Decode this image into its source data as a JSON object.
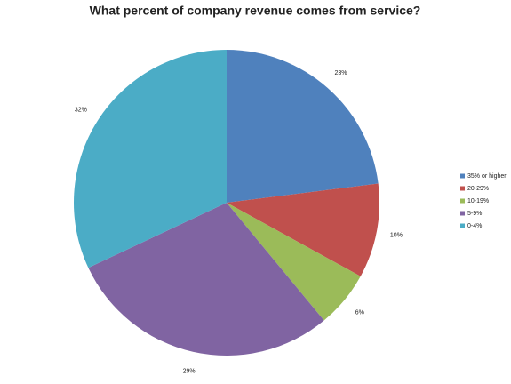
{
  "chart_data": {
    "type": "pie",
    "title": "What percent of company revenue comes from service?",
    "categories": [
      "35% or higher",
      "20-29%",
      "10-19%",
      "5-9%",
      "0-4%"
    ],
    "values": [
      23,
      10,
      6,
      29,
      32
    ],
    "value_labels": [
      "23%",
      "10%",
      "6%",
      "29%",
      "32%"
    ],
    "colors": [
      "#4f81bd",
      "#c0504d",
      "#9bbb59",
      "#8064a2",
      "#4bacc6"
    ],
    "legend": "right"
  }
}
